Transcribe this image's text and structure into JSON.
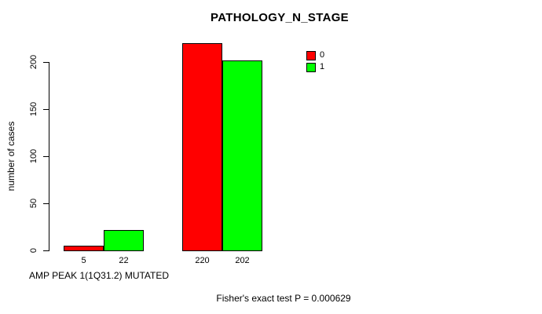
{
  "chart_data": {
    "type": "bar",
    "title": "PATHOLOGY_N_STAGE",
    "ylabel": "number of cases",
    "xlabel": "AMP PEAK 1(1Q31.2) MUTATED",
    "footer": "Fisher's exact test P = 0.000629",
    "ylim": [
      0,
      220
    ],
    "yticks": [
      0,
      50,
      100,
      150,
      200
    ],
    "grid": false,
    "legend_position": "top-right",
    "legend": [
      {
        "label": "0",
        "color": "#ff0000"
      },
      {
        "label": "1",
        "color": "#00ff00"
      }
    ],
    "series": [
      {
        "name": "0",
        "color": "#ff0000",
        "values": [
          5,
          220
        ]
      },
      {
        "name": "1",
        "color": "#00ff00",
        "values": [
          22,
          202
        ]
      }
    ],
    "bar_value_labels": [
      [
        "5",
        "22"
      ],
      [
        "220",
        "202"
      ]
    ],
    "axis_color": "#000000",
    "bar_border_color": "#000000"
  }
}
